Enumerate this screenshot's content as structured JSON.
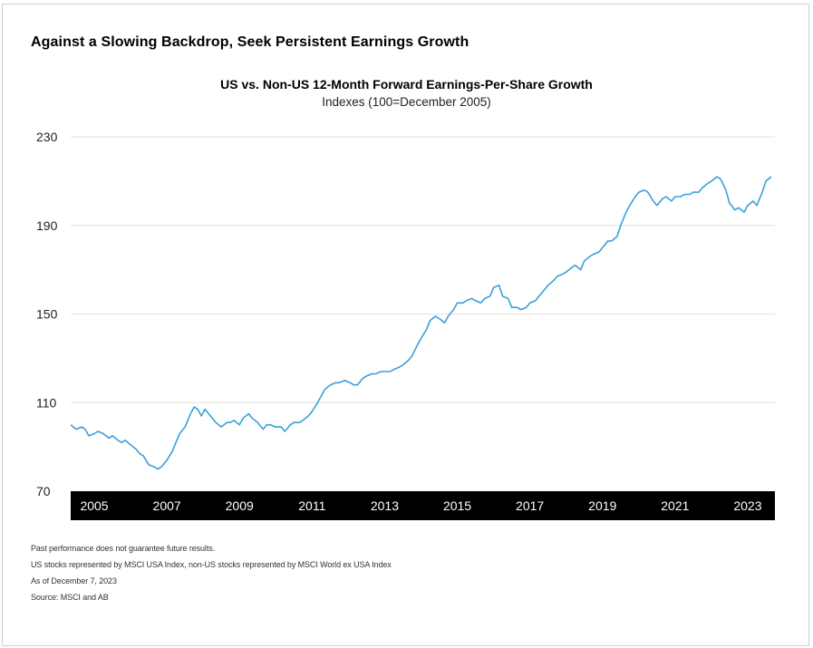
{
  "headline": "Against a Slowing Backdrop, Seek Persistent Earnings Growth",
  "chart_data": {
    "type": "line",
    "title": "US vs. Non-US 12-Month Forward Earnings-Per-Share Growth",
    "subtitle": "Indexes (100=December 2005)",
    "xlabel": "",
    "ylabel": "",
    "ylim": [
      70,
      230
    ],
    "yticks": [
      70,
      110,
      150,
      190,
      230
    ],
    "xlim": [
      2004.6,
      2024.0
    ],
    "xticks": [
      2005,
      2007,
      2009,
      2011,
      2013,
      2015,
      2017,
      2019,
      2021,
      2023
    ],
    "xtick_labels": [
      "2005",
      "2007",
      "2009",
      "2011",
      "2013",
      "2015",
      "2017",
      "2019",
      "2021",
      "2023"
    ],
    "grid": "horizontal",
    "line_color": "#3aa0d8",
    "series": [
      {
        "x": [
          2004.6,
          2004.75,
          2004.9,
          2005.0,
          2005.1,
          2005.25,
          2005.35,
          2005.5,
          2005.65,
          2005.75,
          2005.9,
          2006.0,
          2006.1,
          2006.25,
          2006.4,
          2006.5,
          2006.6,
          2006.75,
          2006.9,
          2007.0,
          2007.1,
          2007.25,
          2007.4,
          2007.5,
          2007.6,
          2007.75,
          2007.9,
          2008.0,
          2008.1,
          2008.2,
          2008.3,
          2008.4,
          2008.5,
          2008.6,
          2008.75,
          2008.9,
          2009.0,
          2009.1,
          2009.25,
          2009.35,
          2009.5,
          2009.6,
          2009.75,
          2009.9,
          2010.0,
          2010.1,
          2010.25,
          2010.4,
          2010.5,
          2010.65,
          2010.75,
          2010.9,
          2011.0,
          2011.15,
          2011.25,
          2011.4,
          2011.5,
          2011.6,
          2011.75,
          2011.9,
          2012.0,
          2012.15,
          2012.3,
          2012.4,
          2012.5,
          2012.65,
          2012.75,
          2012.9,
          2013.0,
          2013.15,
          2013.25,
          2013.4,
          2013.5,
          2013.65,
          2013.75,
          2013.9,
          2014.0,
          2014.15,
          2014.25,
          2014.4,
          2014.5,
          2014.65,
          2014.75,
          2014.9,
          2015.0,
          2015.15,
          2015.25,
          2015.4,
          2015.5,
          2015.65,
          2015.75,
          2015.9,
          2016.0,
          2016.15,
          2016.25,
          2016.4,
          2016.5,
          2016.65,
          2016.75,
          2016.9,
          2017.0,
          2017.15,
          2017.25,
          2017.4,
          2017.5,
          2017.65,
          2017.75,
          2017.9,
          2018.0,
          2018.15,
          2018.25,
          2018.4,
          2018.5,
          2018.65,
          2018.75,
          2018.9,
          2019.0,
          2019.15,
          2019.25,
          2019.4,
          2019.5,
          2019.65,
          2019.75,
          2019.9,
          2020.0,
          2020.15,
          2020.25,
          2020.4,
          2020.5,
          2020.65,
          2020.75,
          2020.9,
          2021.0,
          2021.15,
          2021.25,
          2021.4,
          2021.5,
          2021.65,
          2021.75,
          2021.9,
          2022.0,
          2022.15,
          2022.25,
          2022.4,
          2022.5,
          2022.65,
          2022.75,
          2022.9,
          2023.0,
          2023.15,
          2023.25,
          2023.4,
          2023.5,
          2023.65,
          2023.75,
          2023.9
        ],
        "values": [
          100,
          98,
          99,
          98,
          95,
          96,
          97,
          96,
          94,
          95,
          93,
          92,
          93,
          91,
          89,
          87,
          86,
          82,
          81,
          80,
          81,
          84,
          88,
          92,
          96,
          99,
          105,
          108,
          107,
          104,
          107,
          105,
          103,
          101,
          99,
          101,
          101,
          102,
          100,
          103,
          105,
          103,
          101,
          98,
          100,
          100,
          99,
          99,
          97,
          100,
          101,
          101,
          102,
          104,
          106,
          110,
          113,
          116,
          118,
          119,
          119,
          120,
          119,
          118,
          118,
          121,
          122,
          123,
          123,
          124,
          124,
          124,
          125,
          126,
          127,
          129,
          131,
          136,
          139,
          143,
          147,
          149,
          148,
          146,
          149,
          152,
          155,
          155,
          156,
          157,
          156,
          155,
          157,
          158,
          162,
          163,
          158,
          157,
          153,
          153,
          152,
          153,
          155,
          156,
          158,
          161,
          163,
          165,
          167,
          168,
          169,
          171,
          172,
          170,
          174,
          176,
          177,
          178,
          180,
          183,
          183,
          185,
          190,
          196,
          199,
          203,
          205,
          206,
          205,
          201,
          199,
          202,
          203,
          201,
          203,
          203,
          204,
          204,
          205,
          205,
          207,
          209,
          210,
          212,
          211,
          206,
          200,
          197,
          198,
          196,
          199,
          201,
          199,
          205,
          210,
          212
        ],
        "y_override_note": ""
      }
    ]
  },
  "notes": [
    "Past performance does not guarantee future results.",
    "US stocks represented by MSCI USA Index, non-US stocks represented by MSCI World ex USA Index",
    "As of December 7, 2023",
    "Source: MSCI and AB"
  ]
}
